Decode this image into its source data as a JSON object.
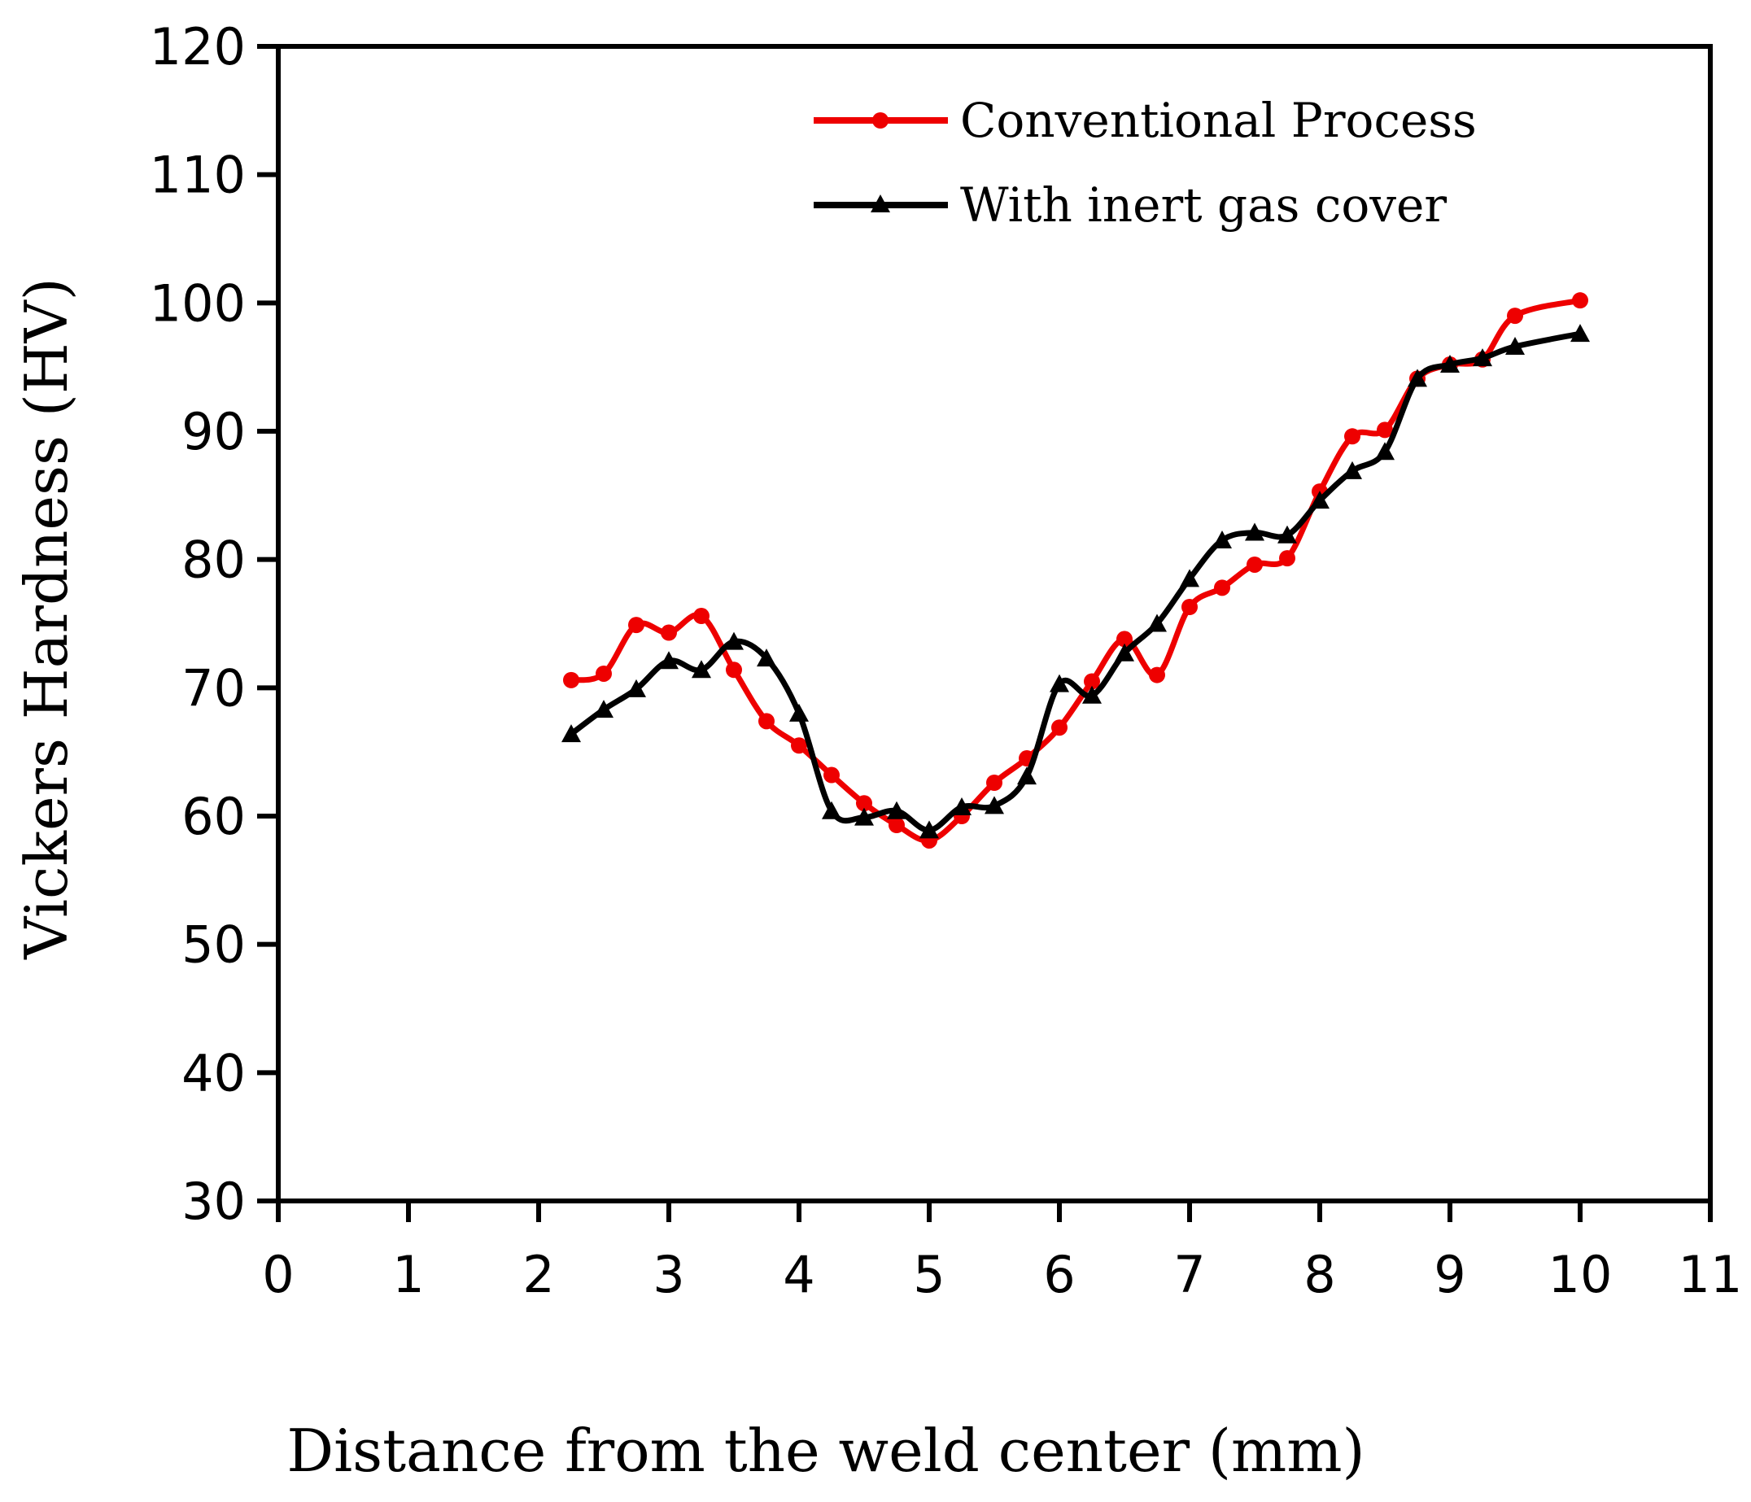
{
  "chart_data": {
    "type": "line",
    "title": "",
    "xlabel": "Distance from the weld center (mm)",
    "ylabel": "Vickers Hardness (HV)",
    "xlim": [
      0,
      11
    ],
    "ylim": [
      30,
      120
    ],
    "xticks": [
      0,
      1,
      2,
      3,
      4,
      5,
      6,
      7,
      8,
      9,
      10,
      11
    ],
    "yticks": [
      30,
      40,
      50,
      60,
      70,
      80,
      90,
      100,
      110,
      120
    ],
    "grid": false,
    "legend_position": "top-right",
    "series": [
      {
        "name": "Conventional Process",
        "color": "#ee0000",
        "marker": "circle",
        "x": [
          2.25,
          2.5,
          2.75,
          3.0,
          3.25,
          3.5,
          3.75,
          4.0,
          4.25,
          4.5,
          4.75,
          5.0,
          5.25,
          5.5,
          5.75,
          6.0,
          6.25,
          6.5,
          6.75,
          7.0,
          7.25,
          7.5,
          7.75,
          8.0,
          8.25,
          8.5,
          8.75,
          9.0,
          9.25,
          9.5,
          10.0
        ],
        "values": [
          70.6,
          71.1,
          74.9,
          74.3,
          75.6,
          71.4,
          67.4,
          65.5,
          63.2,
          61.0,
          59.3,
          58.1,
          60.0,
          62.6,
          64.5,
          66.9,
          70.5,
          73.8,
          71.0,
          76.3,
          77.8,
          79.6,
          80.1,
          85.3,
          89.6,
          90.1,
          94.1,
          95.2,
          95.6,
          99.0,
          100.2
        ]
      },
      {
        "name": "With inert gas cover",
        "color": "#000000",
        "marker": "triangle",
        "x": [
          2.25,
          2.5,
          2.75,
          3.0,
          3.25,
          3.5,
          3.75,
          4.0,
          4.25,
          4.5,
          4.75,
          5.0,
          5.25,
          5.5,
          5.75,
          6.0,
          6.25,
          6.5,
          6.75,
          7.0,
          7.25,
          7.5,
          7.75,
          8.0,
          8.25,
          8.5,
          8.75,
          9.0,
          9.25,
          9.5,
          10.0
        ],
        "values": [
          66.4,
          68.3,
          69.9,
          72.1,
          71.4,
          73.6,
          72.3,
          68.0,
          60.4,
          59.9,
          60.4,
          58.9,
          60.7,
          60.8,
          63.1,
          70.3,
          69.4,
          72.7,
          75.0,
          78.5,
          81.5,
          82.1,
          81.9,
          84.6,
          86.9,
          88.4,
          94.1,
          95.2,
          95.7,
          96.6,
          97.6
        ]
      }
    ]
  }
}
